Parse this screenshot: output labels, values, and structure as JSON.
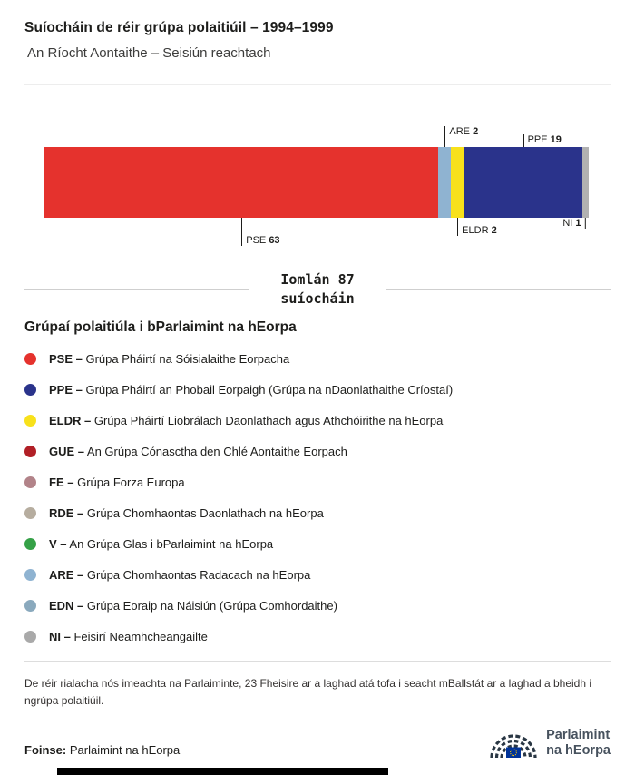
{
  "chart_data": {
    "type": "bar",
    "variant": "horizontal-stacked",
    "title": "Suíocháin de réir grúpa polaitiúil – 1994–1999",
    "subtitle": "An Ríocht Aontaithe – Seisiún reachtach",
    "total_seats": 87,
    "total_label": "Iomlán 87\nsuíocháin",
    "segments": [
      {
        "name": "PSE",
        "value": 63,
        "color": "#e5322d",
        "label_side": "bottom"
      },
      {
        "name": "ARE",
        "value": 2,
        "color": "#8fb3d1",
        "label_side": "top"
      },
      {
        "name": "ELDR",
        "value": 2,
        "color": "#f8e11b",
        "label_side": "bottom"
      },
      {
        "name": "PPE",
        "value": 19,
        "color": "#2a338b",
        "label_side": "top"
      },
      {
        "name": "NI",
        "value": 1,
        "color": "#b1b1b1",
        "label_side": "bottom"
      }
    ]
  },
  "legend": {
    "title": "Grúpaí polaitiúla i bParlaimint na hEorpa",
    "items": [
      {
        "abbr": "PSE –",
        "desc": "Grúpa Pháirtí na Sóisialaithe Eorpacha",
        "color": "#e5322d"
      },
      {
        "abbr": "PPE –",
        "desc": "Grúpa Pháirtí an Phobail Eorpaigh (Grúpa na nDaonlathaithe Críostaí)",
        "color": "#2a338b"
      },
      {
        "abbr": "ELDR –",
        "desc": "Grúpa Pháirtí Liobrálach Daonlathach agus Athchóirithe na hEorpa",
        "color": "#f8e11b"
      },
      {
        "abbr": "GUE –",
        "desc": "An Grúpa Cónasctha den Chlé Aontaithe Eorpach",
        "color": "#b11f26"
      },
      {
        "abbr": "FE –",
        "desc": "Grúpa Forza Europa",
        "color": "#b28389"
      },
      {
        "abbr": "RDE –",
        "desc": "Grúpa Chomhaontas Daonlathach na hEorpa",
        "color": "#b6ad9f"
      },
      {
        "abbr": "V –",
        "desc": "An Grúpa Glas i bParlaimint na hEorpa",
        "color": "#35a147"
      },
      {
        "abbr": "ARE –",
        "desc": "Grúpa Chomhaontas Radacach na hEorpa",
        "color": "#8fb3d1"
      },
      {
        "abbr": "EDN –",
        "desc": "Grúpa Eoraip na Náisiún (Grúpa Comhordaithe)",
        "color": "#8aa9bd"
      },
      {
        "abbr": "NI –",
        "desc": "Feisirí Neamhcheangailte",
        "color": "#a9a9a9"
      }
    ]
  },
  "footnote": "De réir rialacha nós imeachta na Parlaiminte, 23 Fheisire ar a laghad atá tofa i seacht mBallstát ar a laghad a bheidh i ngrúpa polaitiúil.",
  "source": {
    "label": "Foinse:",
    "value": "Parlaimint na hEorpa"
  },
  "logo": {
    "line1": "Parlaimint",
    "line2": "na hEorpa"
  }
}
